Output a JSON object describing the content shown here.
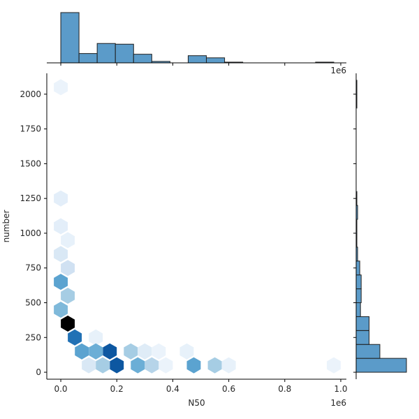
{
  "chart_data": {
    "type": "hexbin-joint",
    "xlabel": "N50",
    "ylabel": "number",
    "x_offset_label": "1e6",
    "top_offset_label": "1e6",
    "xlim": [
      -0.05,
      1.02
    ],
    "ylim": [
      -50,
      2150
    ],
    "x_ticks": [
      0.0,
      0.2,
      0.4,
      0.6,
      0.8,
      1.0
    ],
    "x_tick_labels": [
      "0.0",
      "0.2",
      "0.4",
      "0.6",
      "0.8",
      "1.0"
    ],
    "y_ticks": [
      0,
      250,
      500,
      750,
      1000,
      1250,
      1500,
      1750,
      2000
    ],
    "y_tick_labels": [
      "0",
      "250",
      "500",
      "750",
      "1000",
      "1250",
      "1500",
      "1750",
      "2000"
    ],
    "colormap": "Blues",
    "hex_bins": [
      {
        "x": 0.0,
        "y": 2050,
        "level": 0.06
      },
      {
        "x": 0.0,
        "y": 1250,
        "level": 0.1
      },
      {
        "x": 0.0,
        "y": 1050,
        "level": 0.1
      },
      {
        "x": 0.025,
        "y": 950,
        "level": 0.08
      },
      {
        "x": 0.0,
        "y": 850,
        "level": 0.15
      },
      {
        "x": 0.025,
        "y": 750,
        "level": 0.2
      },
      {
        "x": 0.0,
        "y": 650,
        "level": 0.55
      },
      {
        "x": 0.025,
        "y": 550,
        "level": 0.35
      },
      {
        "x": 0.0,
        "y": 450,
        "level": 0.45
      },
      {
        "x": 0.025,
        "y": 350,
        "level": 1.0
      },
      {
        "x": 0.05,
        "y": 250,
        "level": 0.75
      },
      {
        "x": 0.075,
        "y": 150,
        "level": 0.55
      },
      {
        "x": 0.1,
        "y": 50,
        "level": 0.15
      },
      {
        "x": 0.125,
        "y": 250,
        "level": 0.08
      },
      {
        "x": 0.125,
        "y": 150,
        "level": 0.5
      },
      {
        "x": 0.15,
        "y": 50,
        "level": 0.35
      },
      {
        "x": 0.175,
        "y": 150,
        "level": 0.85
      },
      {
        "x": 0.2,
        "y": 50,
        "level": 0.85
      },
      {
        "x": 0.25,
        "y": 150,
        "level": 0.35
      },
      {
        "x": 0.275,
        "y": 50,
        "level": 0.5
      },
      {
        "x": 0.3,
        "y": 150,
        "level": 0.12
      },
      {
        "x": 0.325,
        "y": 50,
        "level": 0.3
      },
      {
        "x": 0.35,
        "y": 150,
        "level": 0.06
      },
      {
        "x": 0.375,
        "y": 50,
        "level": 0.06
      },
      {
        "x": 0.45,
        "y": 150,
        "level": 0.08
      },
      {
        "x": 0.475,
        "y": 50,
        "level": 0.55
      },
      {
        "x": 0.55,
        "y": 50,
        "level": 0.35
      },
      {
        "x": 0.6,
        "y": 50,
        "level": 0.08
      },
      {
        "x": 0.975,
        "y": 50,
        "level": 0.06
      }
    ],
    "marginal_x": {
      "bin_edges": [
        0.0,
        0.065,
        0.13,
        0.195,
        0.26,
        0.325,
        0.39,
        0.455,
        0.52,
        0.585,
        0.65,
        0.715,
        0.78,
        0.845,
        0.91,
        0.975
      ],
      "counts": [
        70,
        13,
        27,
        26,
        12,
        2,
        0,
        10,
        7,
        1,
        0,
        0,
        0,
        0,
        1
      ]
    },
    "marginal_y": {
      "bin_edges": [
        0,
        100,
        200,
        300,
        400,
        500,
        600,
        700,
        800,
        900,
        1000,
        1100,
        1200,
        1300,
        1900,
        2000,
        2100
      ],
      "counts": [
        70,
        33,
        18,
        18,
        6,
        7,
        7,
        5,
        2,
        1,
        1,
        2,
        1,
        0,
        1,
        1
      ]
    }
  }
}
